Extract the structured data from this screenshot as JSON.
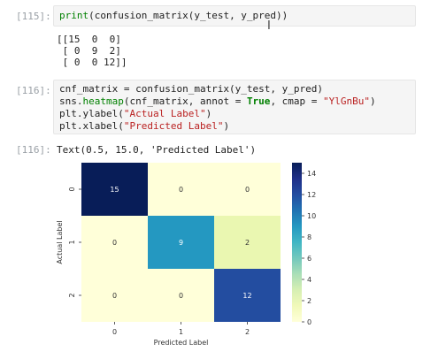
{
  "cells": [
    {
      "prompt": "[115]:",
      "code_lines": [
        {
          "parts": [
            {
              "t": "print",
              "c": "fn"
            },
            {
              "t": "(confusion_matrix(y_test, y_pred))",
              "c": ""
            }
          ]
        }
      ],
      "output_lines": [
        "[[15  0  0]",
        " [ 0  9  2]",
        " [ 0  0 12]]"
      ]
    },
    {
      "prompt": "[116]:",
      "code_lines": [
        {
          "parts": [
            {
              "t": "cnf_matrix = confusion_matrix(y_test, y_pred)",
              "c": ""
            }
          ]
        },
        {
          "parts": [
            {
              "t": "sns.",
              "c": ""
            },
            {
              "t": "heatmap",
              "c": "fn"
            },
            {
              "t": "(cnf_matrix, annot = ",
              "c": ""
            },
            {
              "t": "True",
              "c": "kw"
            },
            {
              "t": ", cmap = ",
              "c": ""
            },
            {
              "t": "\"YlGnBu\"",
              "c": "str"
            },
            {
              "t": ")",
              "c": ""
            }
          ]
        },
        {
          "parts": [
            {
              "t": "plt.ylabel(",
              "c": ""
            },
            {
              "t": "\"Actual Label\"",
              "c": "str"
            },
            {
              "t": ")",
              "c": ""
            }
          ]
        },
        {
          "parts": [
            {
              "t": "plt.xlabel(",
              "c": ""
            },
            {
              "t": "\"Predicted Label\"",
              "c": "str"
            },
            {
              "t": ")",
              "c": ""
            }
          ]
        }
      ]
    },
    {
      "prompt": "[116]:",
      "output_text": "Text(0.5, 15.0, 'Predicted Label')"
    }
  ],
  "chart_data": {
    "type": "heatmap",
    "x_categories": [
      "0",
      "1",
      "2"
    ],
    "y_categories": [
      "0",
      "1",
      "2"
    ],
    "values": [
      [
        15,
        0,
        0
      ],
      [
        0,
        9,
        2
      ],
      [
        0,
        0,
        12
      ]
    ],
    "xlabel": "Predicted Label",
    "ylabel": "Actual Label",
    "colormap": "YlGnBu",
    "vmin": 0,
    "vmax": 15,
    "colorbar_ticks": [
      "0",
      "2",
      "4",
      "6",
      "8",
      "10",
      "12",
      "14"
    ],
    "colorbar_tick_values": [
      0,
      2,
      4,
      6,
      8,
      10,
      12,
      14
    ]
  }
}
